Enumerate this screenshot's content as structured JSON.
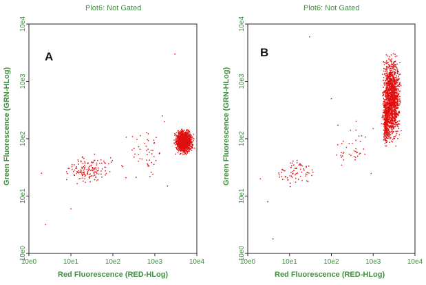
{
  "chart_data": [
    {
      "type": "scatter",
      "panel_label": "A",
      "title": "Plot6:  Not Gated",
      "xlabel": "Red Fluorescence (RED-HLog)",
      "ylabel": "Green Fluorescence (GRN-HLog)",
      "x_scale": "log",
      "y_scale": "log",
      "xlim": [
        1,
        10000
      ],
      "ylim": [
        1,
        10000
      ],
      "x_ticks": [
        "10e0",
        "10e1",
        "10e2",
        "10e3",
        "10e4"
      ],
      "y_ticks": [
        "10e0",
        "10e1",
        "10e2",
        "10e3",
        "10e4"
      ],
      "marker_color": "#e01010",
      "grid": false,
      "clusters": [
        {
          "x_range": [
            2700,
            9000
          ],
          "y_range": [
            50,
            160
          ],
          "count": 1300,
          "description": "dense population"
        },
        {
          "x_range": [
            5,
            120
          ],
          "y_range": [
            14,
            60
          ],
          "count": 150,
          "description": "scattered events"
        },
        {
          "x_range": [
            100,
            2500
          ],
          "y_range": [
            15,
            200
          ],
          "count": 50,
          "description": "sparse events"
        }
      ],
      "points": [
        [
          2,
          25
        ],
        [
          2.5,
          3.2
        ],
        [
          10,
          6
        ],
        [
          1700,
          200
        ],
        [
          3000,
          3000
        ],
        [
          1500,
          250
        ],
        [
          2000,
          15
        ]
      ]
    },
    {
      "type": "scatter",
      "panel_label": "B",
      "title": "Plot6:  Not Gated",
      "xlabel": "Red Fluorescence (RED-HLog)",
      "ylabel": "Green Fluorescence (GRN-HLog)",
      "x_scale": "log",
      "y_scale": "log",
      "xlim": [
        1,
        10000
      ],
      "ylim": [
        1,
        10000
      ],
      "x_ticks": [
        "10e0",
        "10e1",
        "10e2",
        "10e3",
        "10e4"
      ],
      "y_ticks": [
        "10e0",
        "10e1",
        "10e2",
        "10e3",
        "10e4"
      ],
      "marker_color": "#e01010",
      "grid": false,
      "clusters": [
        {
          "x_range": [
            1500,
            5000
          ],
          "y_range": [
            60,
            4000
          ],
          "count": 1500,
          "description": "dense vertical population"
        },
        {
          "x_range": [
            1700,
            2400
          ],
          "y_range": [
            60,
            600
          ],
          "count": 250,
          "description": "dense left edge"
        },
        {
          "x_range": [
            3,
            60
          ],
          "y_range": [
            12,
            60
          ],
          "count": 70,
          "description": "scattered events"
        },
        {
          "x_range": [
            60,
            1500
          ],
          "y_range": [
            20,
            250
          ],
          "count": 40,
          "description": "sparse events"
        }
      ],
      "points": [
        [
          30,
          6000
        ],
        [
          100,
          500
        ],
        [
          4,
          1.8
        ],
        [
          1000,
          150
        ],
        [
          3,
          8
        ],
        [
          2,
          20
        ]
      ]
    }
  ]
}
